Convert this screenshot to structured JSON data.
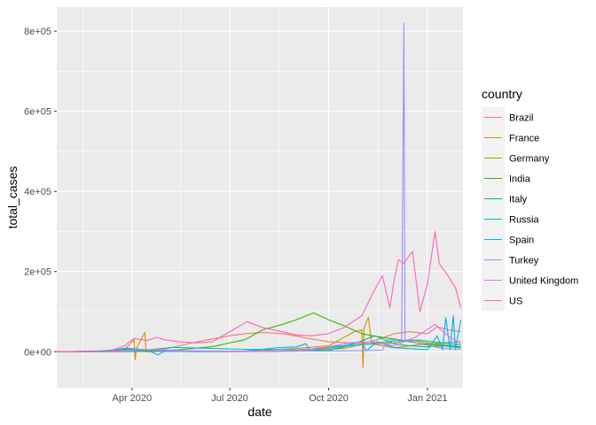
{
  "chart_data": {
    "type": "line",
    "xlabel": "date",
    "ylabel": "total_cases",
    "legend_title": "country",
    "legend_position": "right",
    "grid": true,
    "background": "#EBEBEB",
    "x_range": [
      "2020-01-22",
      "2021-02-03"
    ],
    "ylim": [
      -90000,
      860000
    ],
    "x_ticks": [
      {
        "date": "2020-04-01",
        "label": "Apr 2020"
      },
      {
        "date": "2020-07-01",
        "label": "Jul 2020"
      },
      {
        "date": "2020-10-01",
        "label": "Oct 2020"
      },
      {
        "date": "2021-01-01",
        "label": "Jan 2021"
      }
    ],
    "y_ticks": [
      {
        "value": 0,
        "label": "0e+00"
      },
      {
        "value": 200000,
        "label": "2e+05"
      },
      {
        "value": 400000,
        "label": "4e+05"
      },
      {
        "value": 600000,
        "label": "6e+05"
      },
      {
        "value": 800000,
        "label": "8e+05"
      }
    ],
    "series": [
      {
        "name": "Brazil",
        "color": "#F8766D",
        "points": [
          [
            "2020-01-22",
            0
          ],
          [
            "2020-03-01",
            0
          ],
          [
            "2020-04-01",
            1000
          ],
          [
            "2020-05-01",
            6000
          ],
          [
            "2020-06-01",
            25000
          ],
          [
            "2020-07-01",
            40000
          ],
          [
            "2020-07-15",
            45000
          ],
          [
            "2020-08-01",
            48000
          ],
          [
            "2020-08-20",
            45000
          ],
          [
            "2020-09-15",
            32000
          ],
          [
            "2020-10-01",
            25000
          ],
          [
            "2020-10-20",
            22000
          ],
          [
            "2020-11-01",
            20000
          ],
          [
            "2020-11-15",
            30000
          ],
          [
            "2020-12-01",
            45000
          ],
          [
            "2020-12-15",
            50000
          ],
          [
            "2021-01-01",
            45000
          ],
          [
            "2021-01-10",
            62000
          ],
          [
            "2021-01-20",
            55000
          ],
          [
            "2021-02-01",
            50000
          ]
        ]
      },
      {
        "name": "France",
        "color": "#D89000",
        "points": [
          [
            "2020-01-22",
            0
          ],
          [
            "2020-03-10",
            2000
          ],
          [
            "2020-03-25",
            5000
          ],
          [
            "2020-04-03",
            30000
          ],
          [
            "2020-04-04",
            -20000
          ],
          [
            "2020-04-05",
            8000
          ],
          [
            "2020-04-13",
            48000
          ],
          [
            "2020-04-14",
            0
          ],
          [
            "2020-05-01",
            1000
          ],
          [
            "2020-06-01",
            500
          ],
          [
            "2020-07-01",
            1000
          ],
          [
            "2020-08-01",
            3000
          ],
          [
            "2020-09-01",
            8000
          ],
          [
            "2020-10-01",
            15000
          ],
          [
            "2020-10-25",
            50000
          ],
          [
            "2020-11-01",
            55000
          ],
          [
            "2020-11-02",
            -40000
          ],
          [
            "2020-11-03",
            60000
          ],
          [
            "2020-11-07",
            86000
          ],
          [
            "2020-11-10",
            20000
          ],
          [
            "2020-12-01",
            10000
          ],
          [
            "2021-01-01",
            20000
          ],
          [
            "2021-02-01",
            25000
          ]
        ]
      },
      {
        "name": "Germany",
        "color": "#A3A500",
        "points": [
          [
            "2020-01-22",
            0
          ],
          [
            "2020-03-15",
            3000
          ],
          [
            "2020-04-01",
            6000
          ],
          [
            "2020-05-01",
            1000
          ],
          [
            "2020-07-01",
            500
          ],
          [
            "2020-09-01",
            1500
          ],
          [
            "2020-10-15",
            8000
          ],
          [
            "2020-11-01",
            18000
          ],
          [
            "2020-12-01",
            22000
          ],
          [
            "2020-12-15",
            30000
          ],
          [
            "2021-01-01",
            22000
          ],
          [
            "2021-02-01",
            12000
          ]
        ]
      },
      {
        "name": "India",
        "color": "#39B600",
        "points": [
          [
            "2020-01-22",
            0
          ],
          [
            "2020-03-15",
            0
          ],
          [
            "2020-04-15",
            1000
          ],
          [
            "2020-05-15",
            5000
          ],
          [
            "2020-06-15",
            13000
          ],
          [
            "2020-07-15",
            30000
          ],
          [
            "2020-08-01",
            55000
          ],
          [
            "2020-08-15",
            65000
          ],
          [
            "2020-09-01",
            80000
          ],
          [
            "2020-09-17",
            97000
          ],
          [
            "2020-10-01",
            80000
          ],
          [
            "2020-10-15",
            65000
          ],
          [
            "2020-11-01",
            45000
          ],
          [
            "2020-11-15",
            38000
          ],
          [
            "2020-12-01",
            32000
          ],
          [
            "2020-12-15",
            25000
          ],
          [
            "2021-01-01",
            18000
          ],
          [
            "2021-02-01",
            12000
          ]
        ]
      },
      {
        "name": "Italy",
        "color": "#00BF7D",
        "points": [
          [
            "2020-01-22",
            0
          ],
          [
            "2020-03-01",
            1000
          ],
          [
            "2020-03-21",
            6500
          ],
          [
            "2020-04-15",
            3000
          ],
          [
            "2020-05-15",
            800
          ],
          [
            "2020-07-01",
            200
          ],
          [
            "2020-09-01",
            1500
          ],
          [
            "2020-10-01",
            3000
          ],
          [
            "2020-10-20",
            15000
          ],
          [
            "2020-11-13",
            40000
          ],
          [
            "2020-12-01",
            20000
          ],
          [
            "2020-12-15",
            15000
          ],
          [
            "2021-01-01",
            12000
          ],
          [
            "2021-01-15",
            15000
          ],
          [
            "2021-02-01",
            10000
          ]
        ]
      },
      {
        "name": "Russia",
        "color": "#00BFC4",
        "points": [
          [
            "2020-01-22",
            0
          ],
          [
            "2020-04-01",
            1000
          ],
          [
            "2020-05-10",
            11000
          ],
          [
            "2020-06-15",
            8000
          ],
          [
            "2020-07-15",
            6000
          ],
          [
            "2020-09-01",
            5000
          ],
          [
            "2020-10-01",
            9000
          ],
          [
            "2020-11-01",
            18000
          ],
          [
            "2020-12-01",
            27000
          ],
          [
            "2020-12-24",
            29000
          ],
          [
            "2021-01-15",
            22000
          ],
          [
            "2021-02-01",
            17000
          ]
        ]
      },
      {
        "name": "Spain",
        "color": "#00B0F6",
        "points": [
          [
            "2020-01-22",
            0
          ],
          [
            "2020-03-10",
            2000
          ],
          [
            "2020-03-26",
            9000
          ],
          [
            "2020-04-15",
            5000
          ],
          [
            "2020-04-25",
            -8000
          ],
          [
            "2020-05-01",
            1000
          ],
          [
            "2020-06-01",
            300
          ],
          [
            "2020-07-15",
            2000
          ],
          [
            "2020-08-15",
            10000
          ],
          [
            "2020-09-01",
            12000
          ],
          [
            "2020-09-10",
            20000
          ],
          [
            "2020-09-14",
            2000
          ],
          [
            "2020-10-01",
            12000
          ],
          [
            "2020-10-15",
            15000
          ],
          [
            "2020-11-01",
            25000
          ],
          [
            "2020-11-05",
            2000
          ],
          [
            "2020-11-15",
            25000
          ],
          [
            "2020-12-01",
            10000
          ],
          [
            "2021-01-01",
            5000
          ],
          [
            "2021-01-10",
            40000
          ],
          [
            "2021-01-15",
            5000
          ],
          [
            "2021-01-18",
            85000
          ],
          [
            "2021-01-22",
            5000
          ],
          [
            "2021-01-25",
            90000
          ],
          [
            "2021-01-27",
            5000
          ],
          [
            "2021-02-01",
            80000
          ]
        ]
      },
      {
        "name": "Turkey",
        "color": "#9590FF",
        "points": [
          [
            "2020-01-22",
            0
          ],
          [
            "2020-03-20",
            0
          ],
          [
            "2020-04-11",
            5000
          ],
          [
            "2020-05-15",
            2000
          ],
          [
            "2020-07-01",
            1200
          ],
          [
            "2020-09-01",
            1600
          ],
          [
            "2020-10-01",
            1700
          ],
          [
            "2020-11-01",
            2500
          ],
          [
            "2020-11-20",
            4000
          ],
          [
            "2020-11-25",
            30000
          ],
          [
            "2020-12-08",
            30000
          ],
          [
            "2020-12-10",
            820000
          ],
          [
            "2020-12-11",
            30000
          ],
          [
            "2020-12-25",
            20000
          ],
          [
            "2021-01-15",
            8000
          ],
          [
            "2021-02-01",
            6000
          ]
        ]
      },
      {
        "name": "United Kingdom",
        "color": "#E76BF3",
        "points": [
          [
            "2020-01-22",
            0
          ],
          [
            "2020-03-15",
            1000
          ],
          [
            "2020-04-10",
            6000
          ],
          [
            "2020-05-15",
            3000
          ],
          [
            "2020-07-01",
            1000
          ],
          [
            "2020-08-01",
            1000
          ],
          [
            "2020-09-01",
            3000
          ],
          [
            "2020-10-01",
            12000
          ],
          [
            "2020-10-20",
            22000
          ],
          [
            "2020-11-10",
            25000
          ],
          [
            "2020-12-01",
            15000
          ],
          [
            "2020-12-20",
            35000
          ],
          [
            "2021-01-08",
            68000
          ],
          [
            "2021-01-20",
            40000
          ],
          [
            "2021-02-01",
            20000
          ]
        ]
      },
      {
        "name": "US",
        "color": "#FF62BC",
        "points": [
          [
            "2020-01-22",
            0
          ],
          [
            "2020-03-10",
            500
          ],
          [
            "2020-03-25",
            15000
          ],
          [
            "2020-04-03",
            33000
          ],
          [
            "2020-04-15",
            28000
          ],
          [
            "2020-04-24",
            36000
          ],
          [
            "2020-05-01",
            30000
          ],
          [
            "2020-05-15",
            25000
          ],
          [
            "2020-06-01",
            22000
          ],
          [
            "2020-06-15",
            25000
          ],
          [
            "2020-07-01",
            50000
          ],
          [
            "2020-07-17",
            75000
          ],
          [
            "2020-08-01",
            60000
          ],
          [
            "2020-08-15",
            52000
          ],
          [
            "2020-09-01",
            42000
          ],
          [
            "2020-09-15",
            40000
          ],
          [
            "2020-10-01",
            45000
          ],
          [
            "2020-10-15",
            60000
          ],
          [
            "2020-11-01",
            90000
          ],
          [
            "2020-11-10",
            140000
          ],
          [
            "2020-11-20",
            190000
          ],
          [
            "2020-11-27",
            110000
          ],
          [
            "2020-12-01",
            180000
          ],
          [
            "2020-12-05",
            230000
          ],
          [
            "2020-12-10",
            220000
          ],
          [
            "2020-12-15",
            240000
          ],
          [
            "2020-12-18",
            250000
          ],
          [
            "2020-12-25",
            100000
          ],
          [
            "2021-01-01",
            170000
          ],
          [
            "2021-01-08",
            300000
          ],
          [
            "2021-01-12",
            220000
          ],
          [
            "2021-01-20",
            190000
          ],
          [
            "2021-01-27",
            160000
          ],
          [
            "2021-02-01",
            110000
          ]
        ]
      }
    ]
  }
}
